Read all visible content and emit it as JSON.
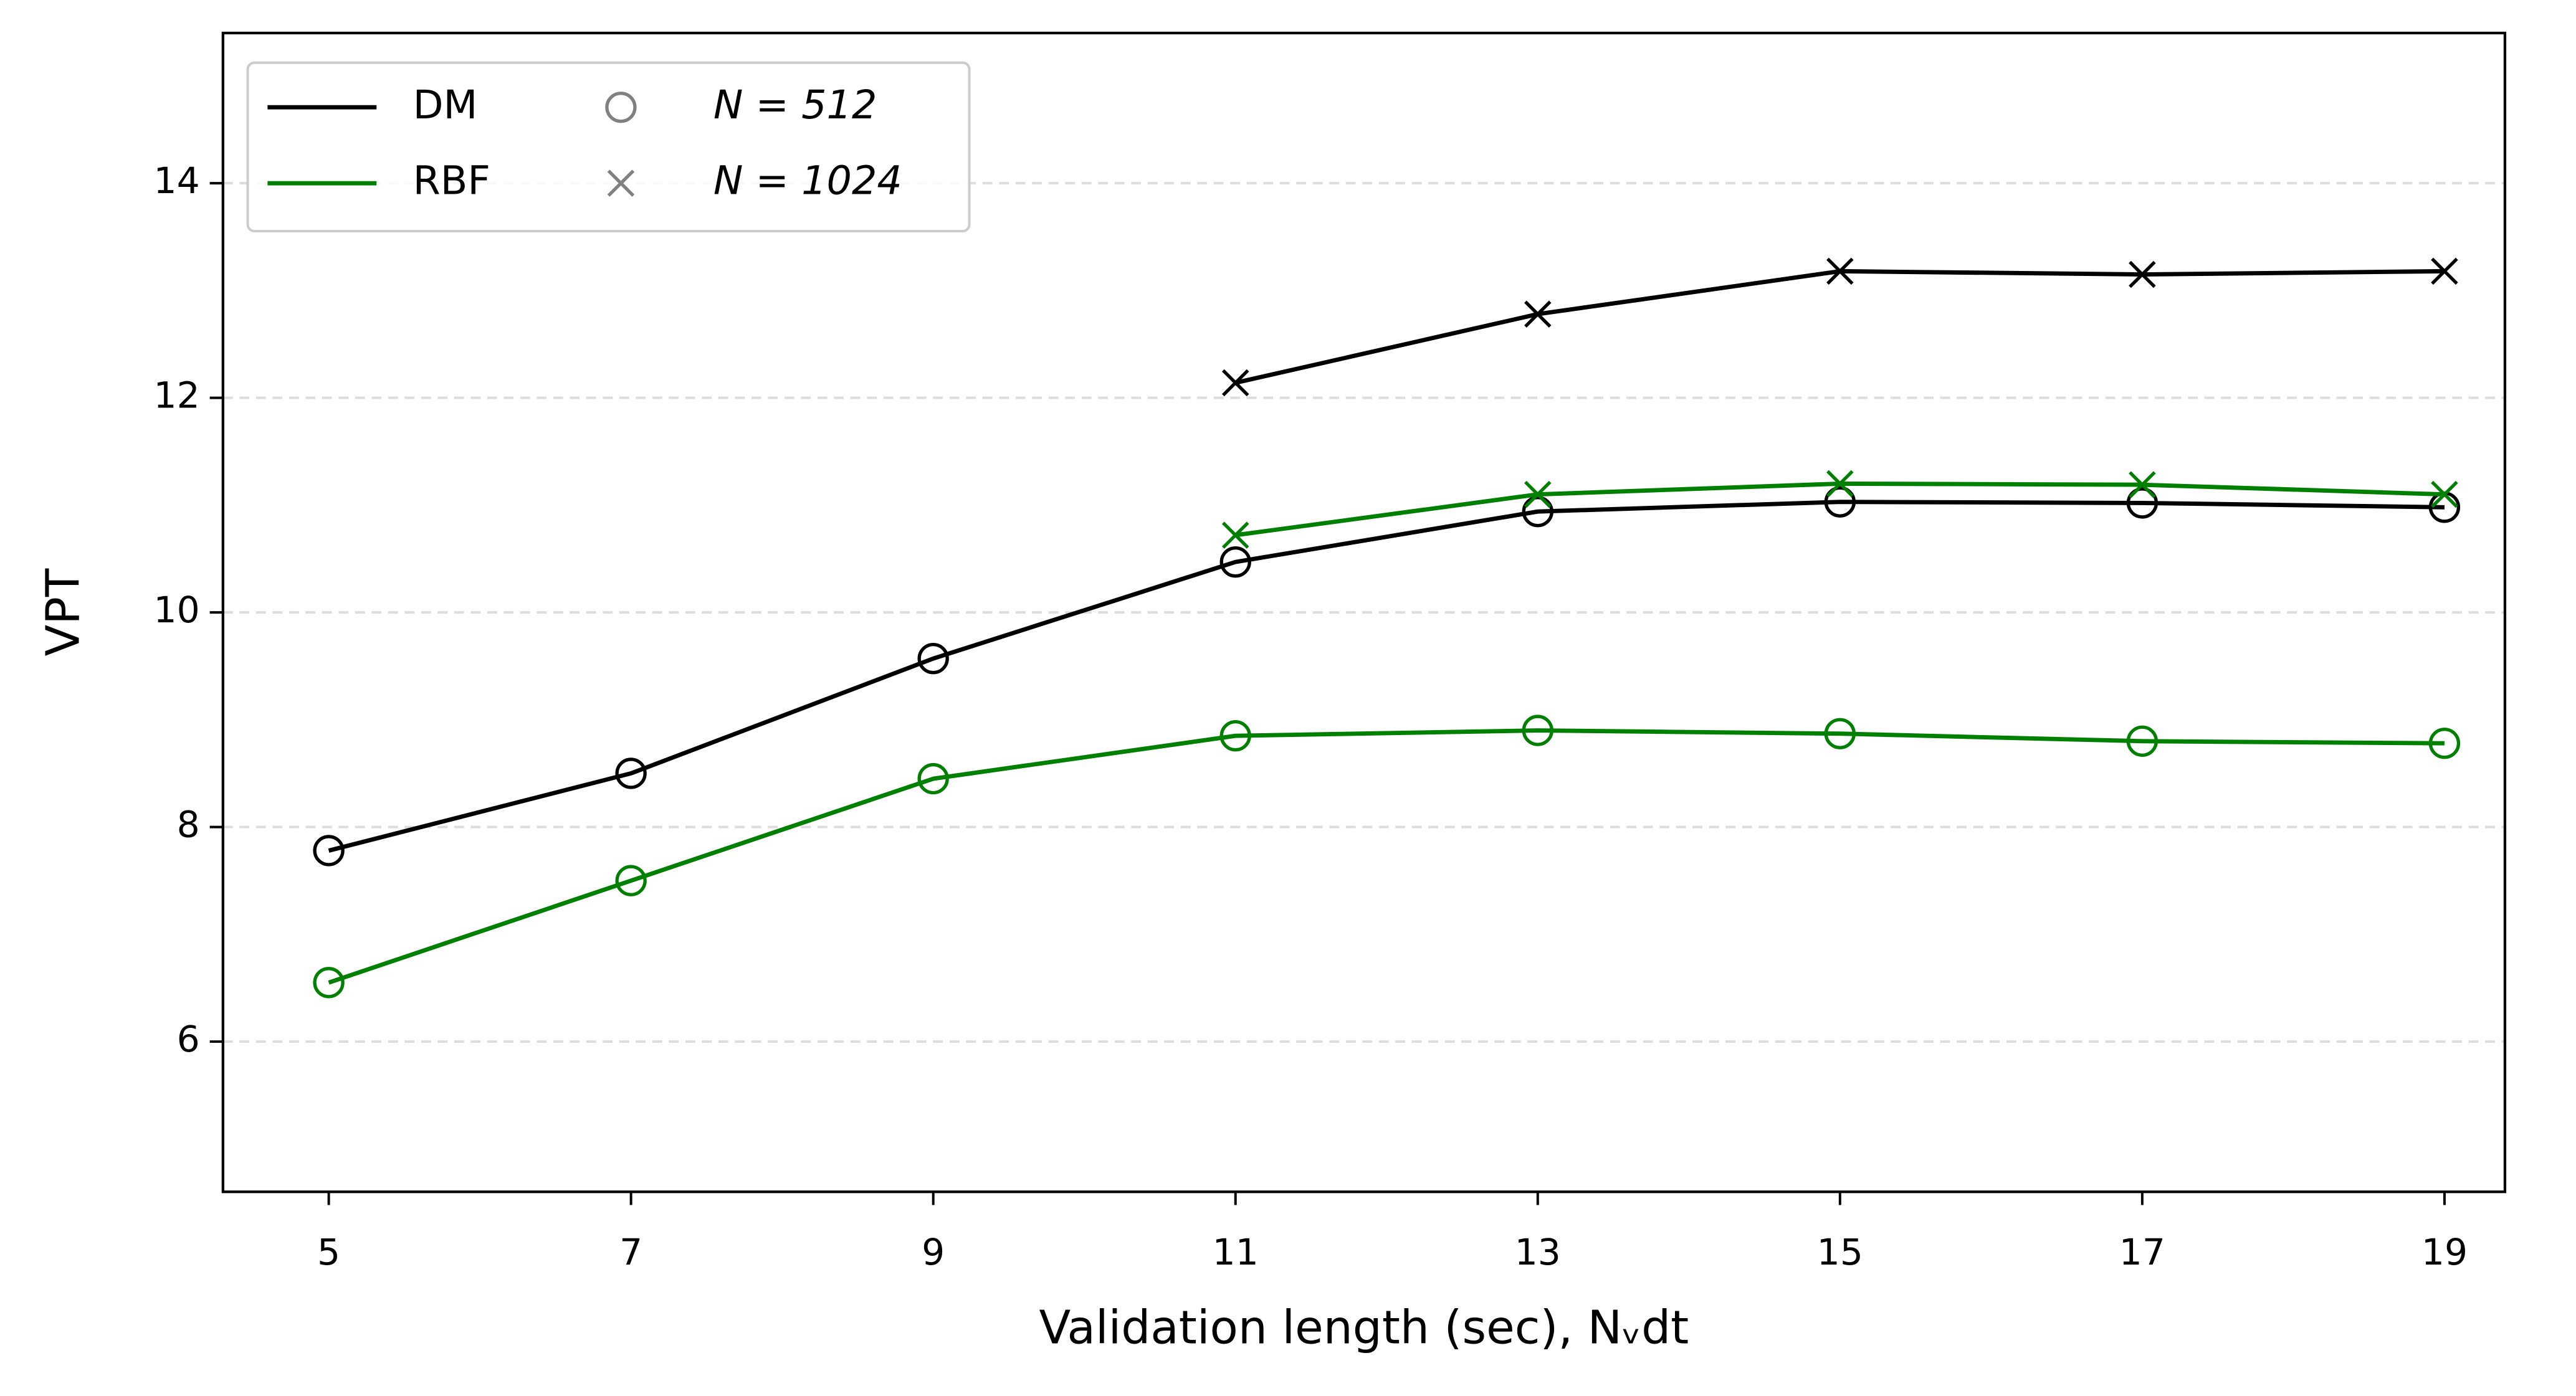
{
  "chart_data": {
    "type": "line",
    "xlabel": "Validation length (sec), Nᵥdt",
    "ylabel": "VPT",
    "x": [
      5,
      7,
      9,
      11,
      13,
      15,
      17,
      19
    ],
    "series": [
      {
        "name": "DM",
        "color": "#000000",
        "sizes": [
          {
            "values": [
              7.78,
              8.5,
              9.57,
              10.47,
              10.94,
              11.03,
              11.02,
              10.98
            ]
          },
          {
            "values": [
              null,
              null,
              null,
              12.14,
              12.78,
              13.18,
              13.15,
              13.18
            ]
          }
        ]
      },
      {
        "name": "RBF",
        "color": "#008000",
        "sizes": [
          {
            "values": [
              6.55,
              7.5,
              8.45,
              8.85,
              8.9,
              8.87,
              8.8,
              8.78
            ]
          },
          {
            "values": [
              null,
              null,
              null,
              10.72,
              11.1,
              11.2,
              11.19,
              11.1
            ]
          }
        ]
      }
    ],
    "markers": [
      {
        "name": "N = 512",
        "shape": "circle"
      },
      {
        "name": "N = 1024",
        "shape": "x"
      }
    ],
    "marker_legend_color": "#808080",
    "xlim": [
      4.3,
      19.4
    ],
    "xticks": [
      5,
      7,
      9,
      11,
      13,
      15,
      17,
      19
    ],
    "ylim": [
      4.6,
      15.4
    ],
    "yticks": [
      6,
      8,
      10,
      12,
      14
    ],
    "grid": true,
    "legend": "upper left"
  }
}
